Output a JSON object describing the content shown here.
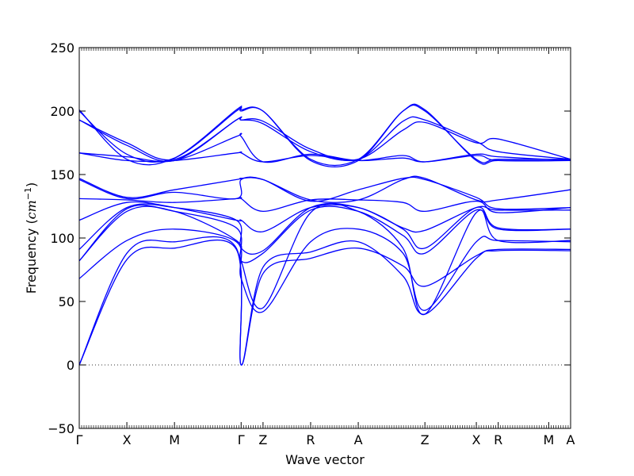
{
  "chart_data": {
    "type": "line",
    "title": "",
    "xlabel": "Wave vector",
    "ylabel_main": "Frequency (",
    "ylabel_unit": "cm",
    "ylabel_exp": "−1",
    "ylabel_close": ")",
    "ylim": [
      -50,
      250
    ],
    "yticks": [
      -50,
      0,
      50,
      100,
      150,
      200,
      250
    ],
    "ytick_labels": [
      "−50",
      "0",
      "50",
      "100",
      "150",
      "200",
      "250"
    ],
    "zero_line": true,
    "line_color": "#0000ff",
    "high_symmetry_points": [
      {
        "label": "Γ",
        "x": 0.0
      },
      {
        "label": "X",
        "x": 0.5
      },
      {
        "label": "M",
        "x": 1.0
      },
      {
        "label": "Γ",
        "x": 1.7
      },
      {
        "label": "Z",
        "x": 1.93
      },
      {
        "label": "R",
        "x": 2.43
      },
      {
        "label": "A",
        "x": 2.93
      },
      {
        "label": "Z",
        "x": 3.63
      },
      {
        "label": "X",
        "x": 4.17
      },
      {
        "label": "R",
        "x": 4.4
      },
      {
        "label": "M",
        "x": 4.93
      },
      {
        "label": "A",
        "x": 5.16
      }
    ],
    "xlim": [
      0,
      5.16
    ],
    "series": [
      {
        "values": [
          0,
          83,
          92,
          91,
          0,
          72,
          84,
          92,
          78,
          62,
          86,
          91,
          91
        ]
      },
      {
        "values": [
          0,
          88,
          97,
          92,
          0,
          77,
          89,
          97,
          70,
          40,
          84,
          90,
          90
        ]
      },
      {
        "values": [
          68,
          98,
          107,
          97,
          68,
          42,
          97,
          107,
          88,
          43,
          97,
          98,
          97
        ]
      },
      {
        "values": [
          82,
          121,
          121,
          98,
          82,
          45,
          120,
          121,
          92,
          40,
          120,
          98,
          98
        ]
      },
      {
        "values": [
          82,
          123,
          121,
          108,
          82,
          88,
          122,
          121,
          102,
          88,
          122,
          107,
          107
        ]
      },
      {
        "values": [
          91,
          124,
          124,
          114,
          92,
          90,
          124,
          124,
          107,
          92,
          124,
          108,
          107
        ]
      },
      {
        "values": [
          114,
          128,
          124,
          114,
          114,
          105,
          124,
          124,
          108,
          106,
          124,
          122,
          122
        ]
      },
      {
        "values": [
          131,
          130,
          128,
          131,
          131,
          121,
          130,
          130,
          128,
          121,
          129,
          120,
          124
        ]
      },
      {
        "values": [
          146,
          131,
          136,
          131,
          146,
          146,
          129,
          138,
          147,
          146,
          132,
          123,
          124
        ]
      },
      {
        "values": [
          147,
          132,
          138,
          146,
          147,
          146,
          130,
          130,
          146,
          147,
          130,
          130,
          138
        ]
      },
      {
        "values": [
          167,
          161,
          161,
          167,
          167,
          160,
          165,
          161,
          165,
          160,
          165,
          161,
          161
        ]
      },
      {
        "values": [
          167,
          164,
          161,
          180,
          180,
          160,
          166,
          161,
          163,
          160,
          166,
          164,
          161
        ]
      },
      {
        "values": [
          193,
          173,
          161,
          193,
          193,
          190,
          168,
          162,
          185,
          191,
          175,
          178,
          162
        ]
      },
      {
        "values": [
          193,
          175,
          162,
          193,
          193,
          192,
          170,
          162,
          192,
          193,
          176,
          168,
          162
        ]
      },
      {
        "values": [
          200,
          166,
          163,
          200,
          200,
          200,
          162,
          162,
          200,
          200,
          162,
          162,
          162
        ]
      },
      {
        "values": [
          201,
          162,
          163,
          201,
          201,
          200,
          161,
          161,
          200,
          201,
          161,
          161,
          161
        ]
      }
    ],
    "series_x": [
      0.0,
      0.5,
      1.0,
      1.65,
      1.7,
      1.93,
      2.43,
      2.93,
      3.4,
      3.63,
      4.17,
      4.4,
      5.16
    ]
  }
}
